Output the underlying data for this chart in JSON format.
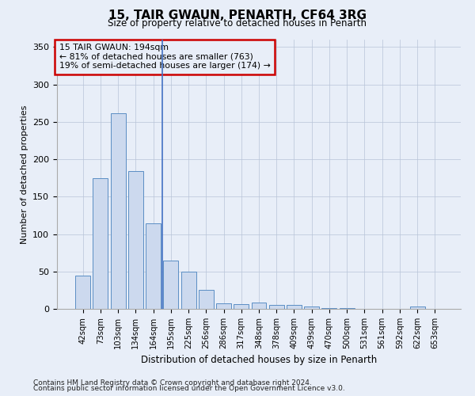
{
  "title": "15, TAIR GWAUN, PENARTH, CF64 3RG",
  "subtitle": "Size of property relative to detached houses in Penarth",
  "xlabel": "Distribution of detached houses by size in Penarth",
  "ylabel": "Number of detached properties",
  "footnote1": "Contains HM Land Registry data © Crown copyright and database right 2024.",
  "footnote2": "Contains public sector information licensed under the Open Government Licence v3.0.",
  "annotation_line1": "15 TAIR GWAUN: 194sqm",
  "annotation_line2": "← 81% of detached houses are smaller (763)",
  "annotation_line3": "19% of semi-detached houses are larger (174) →",
  "bar_color": "#ccd9ee",
  "bar_edge_color": "#5b8ec4",
  "vline_color": "#4472c4",
  "annotation_box_edge_color": "#cc0000",
  "background_color": "#e8eef8",
  "categories": [
    "42sqm",
    "73sqm",
    "103sqm",
    "134sqm",
    "164sqm",
    "195sqm",
    "225sqm",
    "256sqm",
    "286sqm",
    "317sqm",
    "348sqm",
    "378sqm",
    "409sqm",
    "439sqm",
    "470sqm",
    "500sqm",
    "531sqm",
    "561sqm",
    "592sqm",
    "622sqm",
    "653sqm"
  ],
  "values": [
    44,
    175,
    261,
    184,
    114,
    65,
    50,
    25,
    7,
    6,
    8,
    5,
    5,
    3,
    1,
    1,
    0,
    0,
    0,
    3,
    0
  ],
  "ylim": [
    0,
    360
  ],
  "yticks": [
    0,
    50,
    100,
    150,
    200,
    250,
    300,
    350
  ],
  "vline_x": 4.5
}
